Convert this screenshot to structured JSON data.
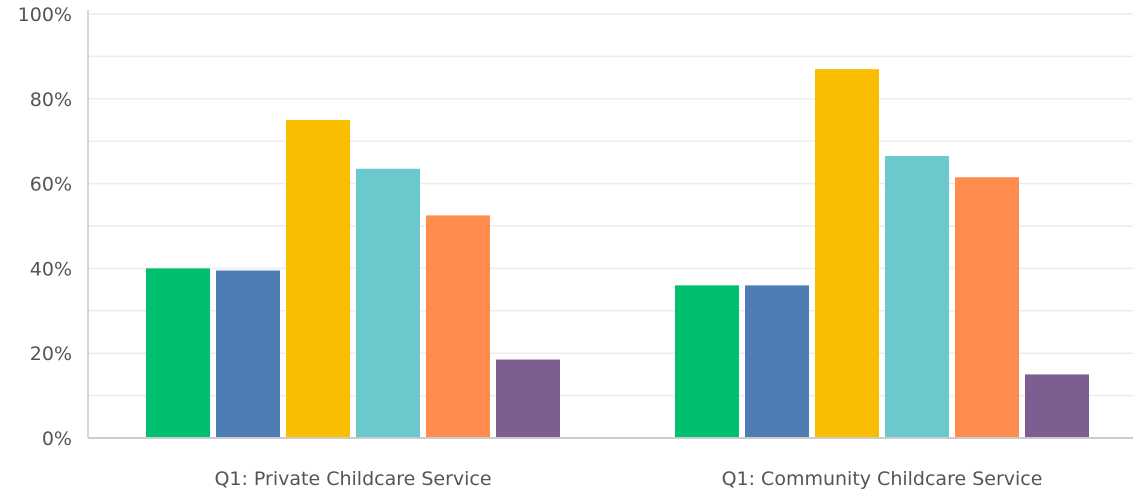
{
  "chart_data": {
    "type": "bar",
    "title": "",
    "xlabel": "",
    "ylabel": "",
    "ylim": [
      0,
      100
    ],
    "y_ticks": [
      "0%",
      "20%",
      "40%",
      "60%",
      "80%",
      "100%"
    ],
    "y_tick_values": [
      0,
      20,
      40,
      60,
      80,
      100
    ],
    "grid": true,
    "legend": "none",
    "categories": [
      "Q1: Private Childcare Service",
      "Q1: Community Childcare Service"
    ],
    "series": [
      {
        "color": "#00bf6f",
        "values": [
          40,
          36
        ]
      },
      {
        "color": "#507cb6",
        "values": [
          39.5,
          36
        ]
      },
      {
        "color": "#f9be00",
        "values": [
          75,
          87
        ]
      },
      {
        "color": "#6bc8cd",
        "values": [
          63.5,
          66.5
        ]
      },
      {
        "color": "#ff8b4f",
        "values": [
          52.5,
          61.5
        ]
      },
      {
        "color": "#7d5e90",
        "values": [
          18.5,
          15
        ]
      }
    ],
    "colors": {
      "gridline": "#ececec",
      "axis": "#cccccc",
      "text": "#555555"
    }
  }
}
